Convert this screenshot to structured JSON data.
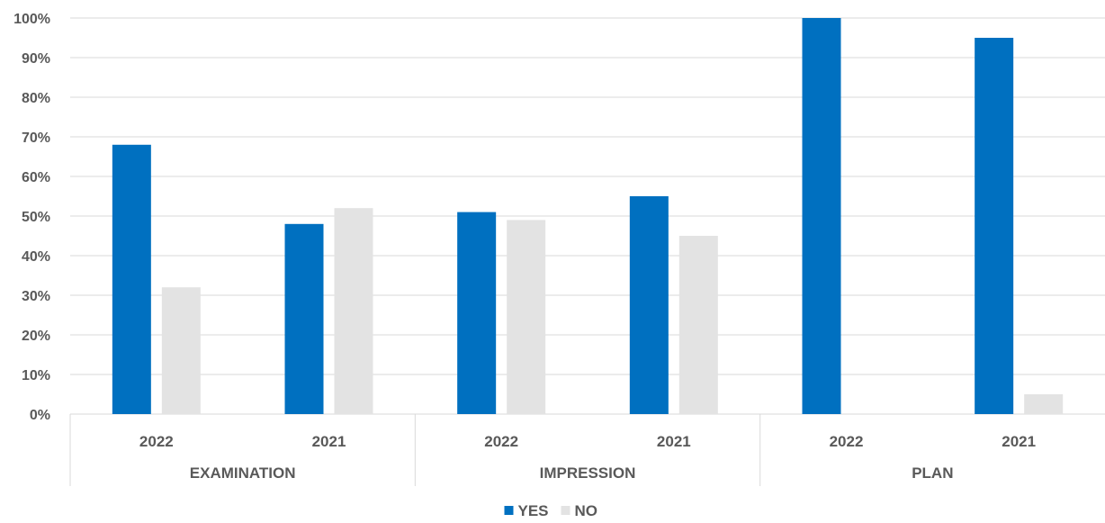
{
  "chart_data": {
    "type": "bar",
    "groups": [
      {
        "label": "EXAMINATION",
        "categories": [
          "2022",
          "2021"
        ]
      },
      {
        "label": "IMPRESSION",
        "categories": [
          "2022",
          "2021"
        ]
      },
      {
        "label": "PLAN",
        "categories": [
          "2022",
          "2021"
        ]
      }
    ],
    "series": [
      {
        "name": "YES",
        "color": "#0070C0",
        "values": [
          68,
          48,
          51,
          55,
          100,
          95
        ]
      },
      {
        "name": "NO",
        "color": "#E3E3E3",
        "values": [
          32,
          52,
          49,
          45,
          0,
          5
        ]
      }
    ],
    "ylim": [
      0,
      100
    ],
    "yticks": [
      "0%",
      "10%",
      "20%",
      "30%",
      "40%",
      "50%",
      "60%",
      "70%",
      "80%",
      "90%",
      "100%"
    ],
    "grid": true,
    "legend_position": "bottom",
    "title": "",
    "xlabel": "",
    "ylabel": ""
  }
}
